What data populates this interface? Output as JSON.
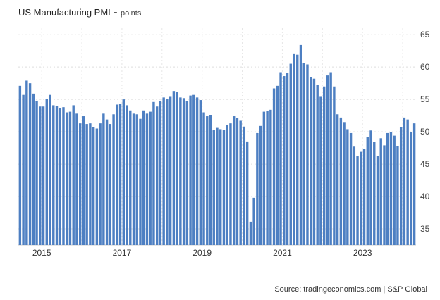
{
  "chart_data": {
    "type": "bar",
    "title": "US Manufacturing PMI",
    "unit": "points",
    "xlabel": "",
    "ylabel": "",
    "ylim": [
      32.5,
      66
    ],
    "y_ticks": [
      35,
      40,
      45,
      50,
      55,
      60,
      65
    ],
    "x_ticks": [
      "2015",
      "2017",
      "2019",
      "2021",
      "2023"
    ],
    "grid": true,
    "bar_color": "#4d7fc2",
    "source": "Source: tradingeconomics.com | S&P Global",
    "series": [
      {
        "start": "2014-06",
        "frequency": "monthly",
        "values": [
          57.1,
          55.7,
          57.9,
          57.5,
          55.9,
          54.8,
          53.9,
          53.9,
          55.1,
          55.7,
          54.1,
          54.0,
          53.6,
          53.8,
          53.0,
          53.1,
          54.1,
          52.8,
          51.3,
          52.4,
          51.2,
          51.3,
          50.7,
          50.5,
          51.3,
          52.8,
          51.9,
          51.2,
          52.7,
          54.2,
          54.3,
          55.0,
          54.1,
          53.3,
          52.8,
          52.7,
          52.0,
          53.3,
          52.8,
          53.1,
          54.6,
          53.9,
          54.8,
          55.3,
          55.1,
          55.4,
          56.3,
          56.2,
          55.3,
          55.2,
          54.7,
          55.6,
          55.7,
          55.3,
          54.9,
          53.0,
          52.4,
          52.6,
          50.3,
          50.6,
          50.4,
          50.3,
          51.1,
          51.3,
          52.4,
          52.1,
          51.7,
          50.8,
          48.5,
          36.1,
          39.8,
          49.8,
          50.9,
          53.1,
          53.2,
          53.4,
          56.7,
          57.1,
          59.2,
          58.6,
          59.1,
          60.5,
          62.1,
          61.9,
          63.4,
          60.6,
          60.4,
          58.4,
          58.2,
          57.3,
          55.4,
          57.0,
          58.7,
          59.2,
          57.0,
          52.7,
          52.2,
          51.5,
          50.4,
          49.8,
          47.7,
          46.2,
          46.9,
          47.3,
          49.2,
          50.2,
          48.4,
          46.3,
          49.0,
          47.9,
          49.8,
          50.0,
          49.4,
          47.8,
          50.7,
          52.2,
          51.9,
          50.0,
          51.3
        ]
      }
    ]
  }
}
